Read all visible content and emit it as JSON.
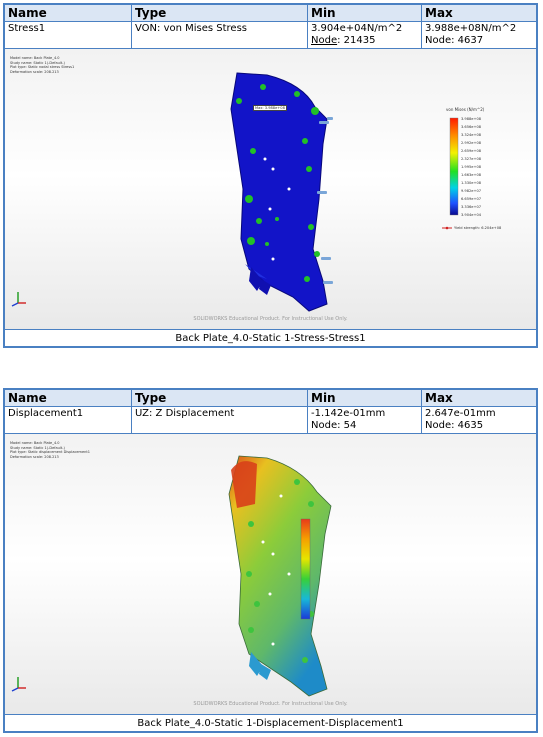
{
  "headers": {
    "name": "Name",
    "type": "Type",
    "min": "Min",
    "max": "Max"
  },
  "stress": {
    "name": "Stress1",
    "type": "VON: von Mises Stress",
    "min_value": "3.904e+04N/m^2",
    "min_node_label": "Node",
    "min_node_value": ": 21435",
    "max_value": "3.988e+08N/m^2",
    "max_node": "Node: 4637",
    "caption": "Back Plate_4.0-Static 1-Stress-Stress1",
    "meta_lines": "Model name: Back Plate_4.0\nStudy name: Static 1(-Default-)\nPlot type: Static nodal stress Stress1\nDeformation scale: 208.213",
    "legend_title": "von Mises (N/m^2)",
    "legend_values": [
      "3.988e+08",
      "3.656e+08",
      "3.324e+08",
      "2.992e+08",
      "2.659e+08",
      "2.327e+08",
      "1.995e+08",
      "1.663e+08",
      "1.330e+08",
      "9.982e+07",
      "6.659e+07",
      "3.336e+07",
      "3.904e+04"
    ],
    "yield_label": "Yield strength: 6.204e+08",
    "max_tag": "Max: 3.988e+08",
    "watermark": "SOLIDWORKS Educational Product. For Instructional Use Only."
  },
  "disp": {
    "name": "Displacement1",
    "type": "UZ: Z Displacement",
    "min_value": "-1.142e-01mm",
    "min_node": "Node: 54",
    "max_value": "2.647e-01mm",
    "max_node": "Node: 4635",
    "caption": "Back Plate_4.0-Static 1-Displacement-Displacement1",
    "meta_lines": "Model name: Back Plate_4.0\nStudy name: Static 1(-Default-)\nPlot type: Static displacement Displacement1\nDeformation scale: 208.213",
    "watermark": "SOLIDWORKS Educational Product. For Instructional Use Only."
  },
  "colors": {
    "border": "#4a80c2",
    "header_bg": "#dbe6f4"
  }
}
